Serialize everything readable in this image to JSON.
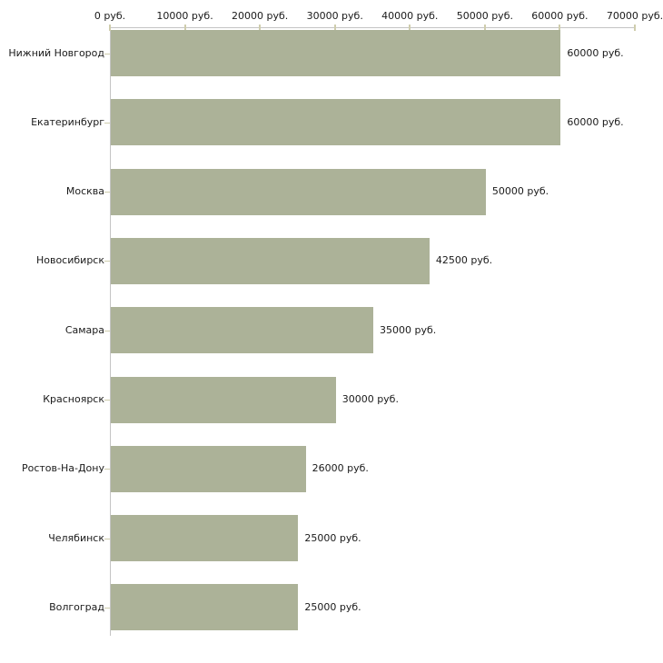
{
  "chart_data": {
    "type": "bar",
    "orientation": "horizontal",
    "categories": [
      "Нижний Новгород",
      "Екатеринбург",
      "Москва",
      "Новосибирск",
      "Самара",
      "Красноярск",
      "Ростов-На-Дону",
      "Челябинск",
      "Волгоград"
    ],
    "values": [
      60000,
      60000,
      50000,
      42500,
      35000,
      30000,
      26000,
      25000,
      25000
    ],
    "value_labels": [
      "60000 руб.",
      "60000 руб.",
      "50000 руб.",
      "42500 руб.",
      "35000 руб.",
      "30000 руб.",
      "26000 руб.",
      "25000 руб.",
      "25000 руб."
    ],
    "x_ticks": [
      0,
      10000,
      20000,
      30000,
      40000,
      50000,
      60000,
      70000
    ],
    "x_tick_labels": [
      "0 руб.",
      "10000 руб.",
      "20000 руб.",
      "30000 руб.",
      "40000 руб.",
      "50000 руб.",
      "60000 руб.",
      "70000 руб."
    ],
    "xlim": [
      0,
      70000
    ],
    "unit": "руб.",
    "title": "",
    "xlabel": "",
    "ylabel": "",
    "grid": false,
    "legend_position": "none",
    "bar_color": "#acb298",
    "axis_line_color": "#c4c4c4",
    "tick_color": "#cfcdad",
    "text_color": "#1a1a1a",
    "background_color": "#ffffff"
  }
}
